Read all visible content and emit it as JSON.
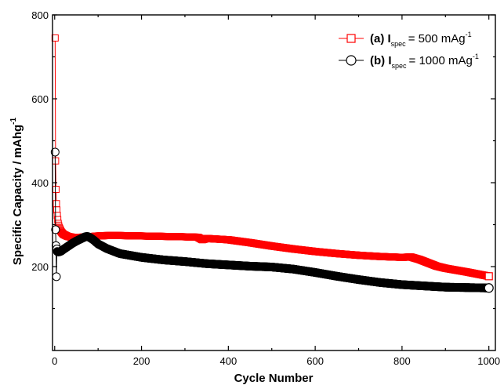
{
  "chart_data": {
    "type": "line",
    "xlabel": "Cycle Number",
    "ylabel": "Specific Capacity / mAhg",
    "ylabel_sup": "-1",
    "xlim": [
      -5,
      1015
    ],
    "ylim": [
      0,
      800
    ],
    "xticks": [
      0,
      200,
      400,
      600,
      800,
      1000
    ],
    "yticks": [
      200,
      400,
      600,
      800
    ],
    "grid": false,
    "legend_position": "top-right",
    "series": [
      {
        "name": "(a) I spec = 500 mAg-1",
        "legend": {
          "prefix": "(a) I",
          "sub": "spec",
          "mid": "= 500   mAg",
          "sup": "-1"
        },
        "color": "#ff0000",
        "marker": "square",
        "points": [
          [
            1,
            745
          ],
          [
            2,
            452
          ],
          [
            3,
            384
          ],
          [
            4,
            350
          ],
          [
            5,
            335
          ],
          [
            6,
            322
          ],
          [
            7,
            312
          ],
          [
            8,
            303
          ],
          [
            10,
            294
          ],
          [
            15,
            283
          ],
          [
            20,
            277
          ],
          [
            30,
            272
          ],
          [
            40,
            270
          ],
          [
            60,
            270
          ],
          [
            80,
            271
          ],
          [
            100,
            273
          ],
          [
            120,
            274
          ],
          [
            150,
            274
          ],
          [
            200,
            273
          ],
          [
            250,
            272
          ],
          [
            300,
            271
          ],
          [
            330,
            270
          ],
          [
            340,
            264
          ],
          [
            350,
            267
          ],
          [
            400,
            264
          ],
          [
            450,
            257
          ],
          [
            500,
            249
          ],
          [
            550,
            242
          ],
          [
            600,
            236
          ],
          [
            650,
            231
          ],
          [
            700,
            227
          ],
          [
            750,
            224
          ],
          [
            800,
            222
          ],
          [
            820,
            223
          ],
          [
            840,
            217
          ],
          [
            860,
            209
          ],
          [
            880,
            201
          ],
          [
            900,
            196
          ],
          [
            950,
            187
          ],
          [
            1000,
            177
          ]
        ],
        "endpoint_marker": [
          1000,
          177
        ]
      },
      {
        "name": "(b) I spec = 1000 mAg-1",
        "legend": {
          "prefix": "(b) I",
          "sub": "spec",
          "mid": "= 1000 mAg",
          "sup": "-1"
        },
        "color": "#000000",
        "marker": "circle",
        "points": [
          [
            1,
            473
          ],
          [
            2,
            288
          ],
          [
            3,
            250
          ],
          [
            4,
            176
          ],
          [
            5,
            242
          ],
          [
            6,
            236
          ],
          [
            8,
            235
          ],
          [
            10,
            235
          ],
          [
            15,
            237
          ],
          [
            20,
            241
          ],
          [
            30,
            248
          ],
          [
            40,
            255
          ],
          [
            50,
            261
          ],
          [
            60,
            266
          ],
          [
            70,
            271
          ],
          [
            75,
            272
          ],
          [
            80,
            270
          ],
          [
            90,
            263
          ],
          [
            100,
            254
          ],
          [
            120,
            243
          ],
          [
            150,
            231
          ],
          [
            200,
            222
          ],
          [
            250,
            216
          ],
          [
            300,
            212
          ],
          [
            350,
            207
          ],
          [
            400,
            204
          ],
          [
            450,
            201
          ],
          [
            500,
            199
          ],
          [
            550,
            194
          ],
          [
            600,
            186
          ],
          [
            650,
            177
          ],
          [
            700,
            169
          ],
          [
            750,
            162
          ],
          [
            800,
            157
          ],
          [
            850,
            154
          ],
          [
            900,
            151
          ],
          [
            950,
            150
          ],
          [
            1000,
            149
          ]
        ],
        "endpoint_marker": [
          1000,
          149
        ]
      }
    ]
  }
}
